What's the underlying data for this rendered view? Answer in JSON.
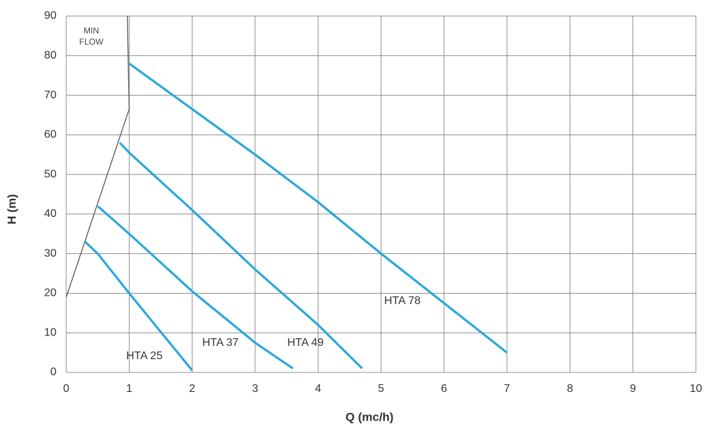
{
  "chart_data": {
    "type": "line",
    "x_label": "Q (mc/h)",
    "y_label": "H (m)",
    "xlim": [
      0,
      10
    ],
    "xticks": [
      0,
      1,
      2,
      3,
      4,
      5,
      6,
      7,
      8,
      9,
      10
    ],
    "ylim": [
      0,
      90
    ],
    "yticks": [
      0,
      10,
      20,
      30,
      40,
      50,
      60,
      70,
      80,
      90
    ],
    "grid": true,
    "series": [
      {
        "name": "MIN FLOW",
        "color": "#555555",
        "x": [
          0,
          1,
          0.97
        ],
        "values": [
          19,
          66.5,
          90
        ]
      },
      {
        "name": "HTA 25",
        "color": "#2aa7dc",
        "x": [
          0.3,
          0.5,
          1,
          2
        ],
        "values": [
          33,
          30,
          20,
          0.5
        ]
      },
      {
        "name": "HTA 37",
        "color": "#2aa7dc",
        "x": [
          0.5,
          1,
          2,
          3,
          3.6
        ],
        "values": [
          42,
          35,
          20.5,
          7.5,
          1
        ]
      },
      {
        "name": "HTA 49",
        "color": "#2aa7dc",
        "x": [
          0.85,
          1,
          2,
          3,
          4,
          4.7
        ],
        "values": [
          58,
          55.5,
          41,
          26,
          12,
          1
        ]
      },
      {
        "name": "HTA 78",
        "color": "#2aa7dc",
        "x": [
          1,
          2,
          3,
          4,
          5,
          6,
          7
        ],
        "values": [
          78,
          66.5,
          55,
          43,
          30,
          17.5,
          5
        ]
      }
    ]
  }
}
